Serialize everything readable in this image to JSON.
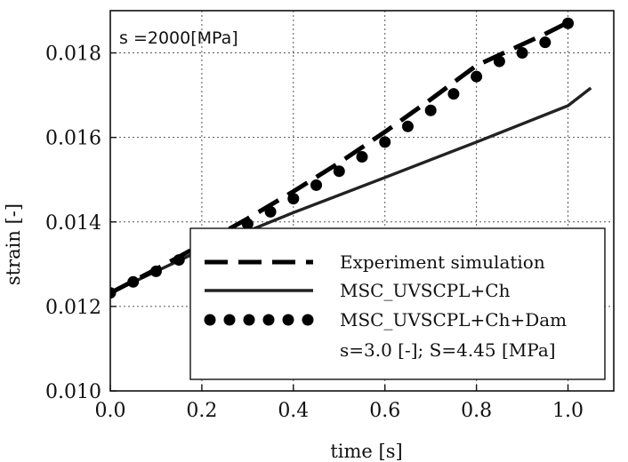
{
  "chart_data": {
    "type": "line",
    "title": "",
    "annotation": "s =2000[MPa]",
    "xlabel": "time [s]",
    "ylabel": "strain [-]",
    "xlim": [
      0.0,
      1.1
    ],
    "ylim": [
      0.01,
      0.019
    ],
    "x_ticks": [
      0.0,
      0.2,
      0.4,
      0.6,
      0.8,
      1.0
    ],
    "x_tick_labels": [
      "0.0",
      "0.2",
      "0.4",
      "0.6",
      "0.8",
      "1.0"
    ],
    "y_ticks": [
      0.01,
      0.012,
      0.014,
      0.016,
      0.018
    ],
    "y_tick_labels": [
      "0.010",
      "0.012",
      "0.014",
      "0.016",
      "0.018"
    ],
    "grid": true,
    "legend_position": "bottom-right",
    "series": [
      {
        "name": "Experiment simulation",
        "style": "dashed",
        "color": "#000000",
        "x": [
          0.0,
          0.1,
          0.2,
          0.3,
          0.4,
          0.5,
          0.6,
          0.7,
          0.8,
          0.9,
          0.95,
          1.0
        ],
        "y": [
          0.01232,
          0.01288,
          0.01347,
          0.01408,
          0.01472,
          0.0154,
          0.01613,
          0.0169,
          0.0177,
          0.0182,
          0.01845,
          0.01872
        ]
      },
      {
        "name": "MSC_UVSCPL+Ch",
        "style": "solid",
        "color": "#222222",
        "x": [
          0.0,
          0.2,
          0.4,
          0.6,
          0.8,
          1.0,
          1.05
        ],
        "y": [
          0.01232,
          0.01334,
          0.01422,
          0.01505,
          0.01589,
          0.01675,
          0.01717
        ]
      },
      {
        "name": "MSC_UVSCPL+Ch+Dam",
        "style": "dotted-markers",
        "color": "#000000",
        "x": [
          0.0,
          0.05,
          0.1,
          0.15,
          0.2,
          0.25,
          0.3,
          0.35,
          0.4,
          0.45,
          0.5,
          0.55,
          0.6,
          0.65,
          0.7,
          0.75,
          0.8,
          0.85,
          0.9,
          0.95,
          1.0
        ],
        "y": [
          0.01232,
          0.01258,
          0.01283,
          0.0131,
          0.01337,
          0.01366,
          0.01395,
          0.01424,
          0.01455,
          0.01487,
          0.0152,
          0.01554,
          0.01589,
          0.01626,
          0.01664,
          0.01703,
          0.01744,
          0.0178,
          0.018,
          0.01825,
          0.0187
        ]
      }
    ],
    "legend_note": "s=3.0 [-]; S=4.45 [MPa]"
  }
}
